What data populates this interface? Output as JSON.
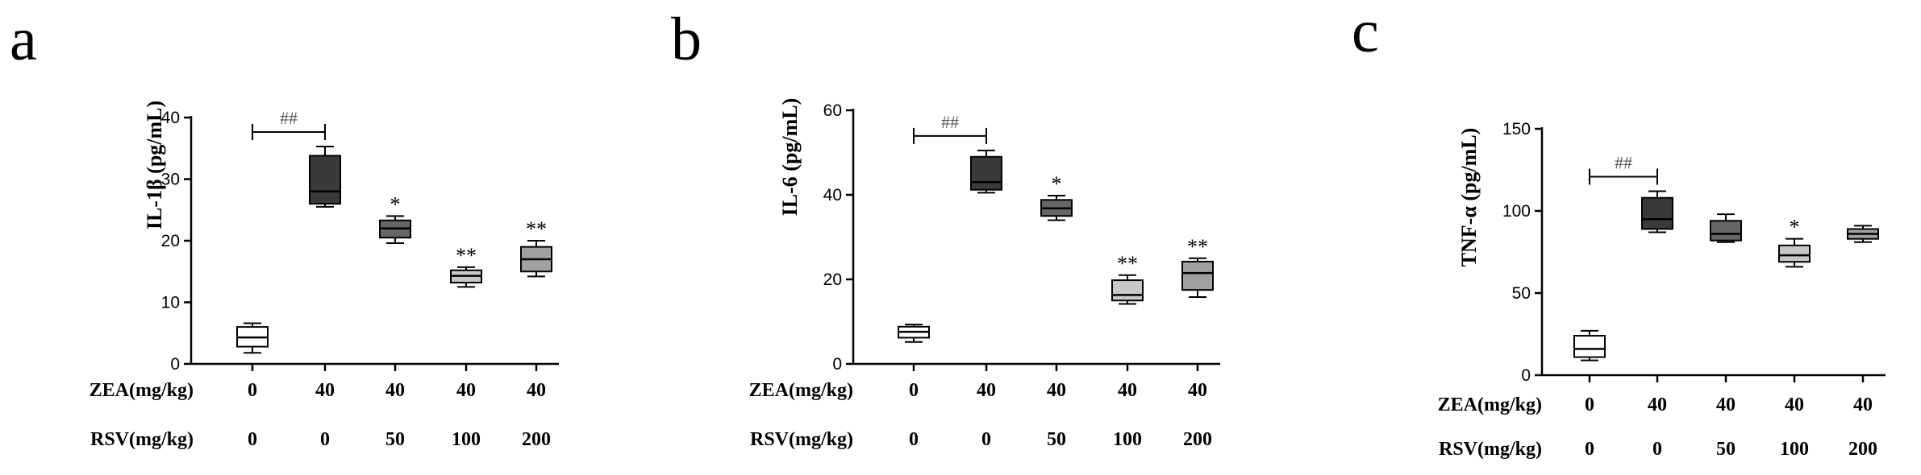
{
  "chart_data": [
    {
      "type": "boxplot",
      "panel": "a",
      "ylabel": "IL-1β (pg/mL)",
      "ylim": [
        0,
        40
      ],
      "yticks": [
        "0",
        "10",
        "20",
        "30",
        "40"
      ],
      "row_labels": [
        "ZEA(mg/kg)",
        "RSV(mg/kg)"
      ],
      "zea": [
        "0",
        "40",
        "40",
        "40",
        "40"
      ],
      "rsv": [
        "0",
        "0",
        "50",
        "100",
        "200"
      ],
      "boxes": [
        {
          "min": 1.8,
          "q1": 2.8,
          "median": 4.3,
          "q3": 6.0,
          "max": 6.6,
          "fill": "#ffffff",
          "sig": ""
        },
        {
          "min": 25.5,
          "q1": 26.0,
          "median": 28.0,
          "q3": 33.8,
          "max": 35.3,
          "fill": "#3a3a3a",
          "sig": ""
        },
        {
          "min": 19.6,
          "q1": 20.5,
          "median": 22.0,
          "q3": 23.3,
          "max": 24.0,
          "fill": "#666666",
          "sig": "*"
        },
        {
          "min": 12.5,
          "q1": 13.2,
          "median": 14.3,
          "q3": 15.2,
          "max": 15.7,
          "fill": "#c8c8c8",
          "sig": "**"
        },
        {
          "min": 14.2,
          "q1": 15.0,
          "median": 17.0,
          "q3": 19.0,
          "max": 20.0,
          "fill": "#a0a0a0",
          "sig": "**"
        }
      ],
      "bracket": {
        "from": 0,
        "to": 1,
        "label": "##"
      }
    },
    {
      "type": "boxplot",
      "panel": "b",
      "ylabel": "IL-6 (pg/mL)",
      "ylim": [
        0,
        60
      ],
      "yticks": [
        "0",
        "20",
        "40",
        "60"
      ],
      "row_labels": [
        "ZEA(mg/kg)",
        "RSV(mg/kg)"
      ],
      "zea": [
        "0",
        "40",
        "40",
        "40",
        "40"
      ],
      "rsv": [
        "0",
        "0",
        "50",
        "100",
        "200"
      ],
      "boxes": [
        {
          "min": 5.2,
          "q1": 6.2,
          "median": 7.6,
          "q3": 8.8,
          "max": 9.3,
          "fill": "#ffffff",
          "sig": ""
        },
        {
          "min": 40.5,
          "q1": 41.2,
          "median": 43.0,
          "q3": 49.0,
          "max": 50.5,
          "fill": "#3a3a3a",
          "sig": ""
        },
        {
          "min": 34.0,
          "q1": 35.0,
          "median": 36.8,
          "q3": 38.8,
          "max": 39.8,
          "fill": "#666666",
          "sig": "*"
        },
        {
          "min": 14.2,
          "q1": 15.0,
          "median": 16.3,
          "q3": 19.8,
          "max": 21.0,
          "fill": "#c8c8c8",
          "sig": "**"
        },
        {
          "min": 15.8,
          "q1": 17.5,
          "median": 21.5,
          "q3": 24.2,
          "max": 25.0,
          "fill": "#a0a0a0",
          "sig": "**"
        }
      ],
      "bracket": {
        "from": 0,
        "to": 1,
        "label": "##"
      }
    },
    {
      "type": "boxplot",
      "panel": "c",
      "ylabel": "TNF-α (pg/mL)",
      "ylim": [
        0,
        150
      ],
      "yticks": [
        "0",
        "50",
        "100",
        "150"
      ],
      "row_labels": [
        "ZEA(mg/kg)",
        "RSV(mg/kg)"
      ],
      "zea": [
        "0",
        "40",
        "40",
        "40",
        "40"
      ],
      "rsv": [
        "0",
        "0",
        "50",
        "100",
        "200"
      ],
      "boxes": [
        {
          "min": 9.0,
          "q1": 11.0,
          "median": 16.0,
          "q3": 24.0,
          "max": 27.0,
          "fill": "#ffffff",
          "sig": ""
        },
        {
          "min": 87.0,
          "q1": 89.0,
          "median": 95.0,
          "q3": 108.0,
          "max": 112.0,
          "fill": "#3a3a3a",
          "sig": ""
        },
        {
          "min": 81.0,
          "q1": 82.0,
          "median": 86.0,
          "q3": 94.0,
          "max": 98.0,
          "fill": "#666666",
          "sig": ""
        },
        {
          "min": 66.0,
          "q1": 69.0,
          "median": 73.0,
          "q3": 79.0,
          "max": 83.0,
          "fill": "#c8c8c8",
          "sig": "*"
        },
        {
          "min": 81.0,
          "q1": 83.0,
          "median": 86.0,
          "q3": 89.0,
          "max": 91.0,
          "fill": "#a0a0a0",
          "sig": ""
        }
      ],
      "bracket": {
        "from": 0,
        "to": 1,
        "label": "##"
      }
    }
  ]
}
